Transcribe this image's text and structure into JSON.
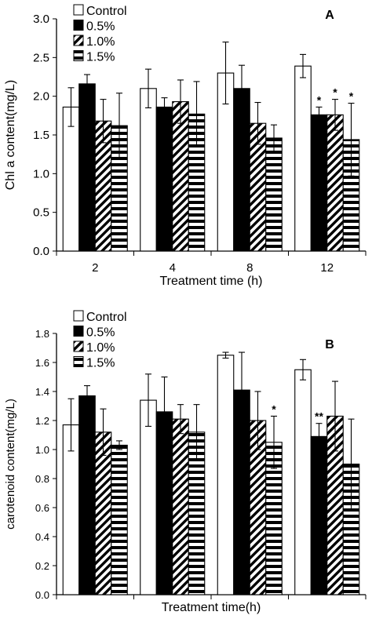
{
  "chart_data": [
    {
      "panel_label": "A",
      "type": "bar",
      "xlabel": "Treatment time (h)",
      "ylabel": "Chl a content(mg/L)",
      "categories": [
        "2",
        "4",
        "8",
        "12"
      ],
      "ylim": [
        0,
        3.0
      ],
      "yticks": [
        "0.0",
        "0.5",
        "1.0",
        "1.5",
        "2.0",
        "2.5",
        "3.0"
      ],
      "legend_position": "top-left",
      "series": [
        {
          "name": "Control",
          "pattern": "white",
          "values": [
            1.86,
            2.1,
            2.3,
            2.39
          ],
          "errors": [
            0.25,
            0.25,
            0.4,
            0.15
          ]
        },
        {
          "name": "0.5%",
          "pattern": "black",
          "values": [
            2.16,
            1.86,
            2.1,
            1.76
          ],
          "errors": [
            0.12,
            0.12,
            0.3,
            0.1
          ]
        },
        {
          "name": "1.0%",
          "pattern": "diagonal",
          "values": [
            1.68,
            1.93,
            1.65,
            1.76
          ],
          "errors": [
            0.28,
            0.28,
            0.27,
            0.2
          ]
        },
        {
          "name": "1.5%",
          "pattern": "horizontal",
          "values": [
            1.62,
            1.77,
            1.46,
            1.44
          ],
          "errors": [
            0.42,
            0.42,
            0.17,
            0.47
          ]
        }
      ],
      "annotations": [
        {
          "category": "12",
          "series": "0.5%",
          "text": "*"
        },
        {
          "category": "12",
          "series": "1.0%",
          "text": "*"
        },
        {
          "category": "12",
          "series": "1.5%",
          "text": "*"
        }
      ]
    },
    {
      "panel_label": "B",
      "type": "bar",
      "xlabel": "Treatment time(h)",
      "ylabel": "carotenoid content(mg/L)",
      "categories": [
        "2",
        "4",
        "8",
        "12"
      ],
      "ylim": [
        0,
        1.8
      ],
      "yticks": [
        "0.0",
        "0.2",
        "0.4",
        "0.6",
        "0.8",
        "1.0",
        "1.2",
        "1.4",
        "1.6",
        "1.8"
      ],
      "legend_position": "top-left",
      "series": [
        {
          "name": "Control",
          "pattern": "white",
          "values": [
            1.17,
            1.34,
            1.65,
            1.55
          ],
          "errors": [
            0.18,
            0.18,
            0.02,
            0.07
          ]
        },
        {
          "name": "0.5%",
          "pattern": "black",
          "values": [
            1.37,
            1.26,
            1.41,
            1.09
          ],
          "errors": [
            0.07,
            0.24,
            0.26,
            0.09
          ]
        },
        {
          "name": "1.0%",
          "pattern": "diagonal",
          "values": [
            1.12,
            1.21,
            1.2,
            1.23
          ],
          "errors": [
            0.16,
            0.1,
            0.2,
            0.24
          ]
        },
        {
          "name": "1.5%",
          "pattern": "horizontal",
          "values": [
            1.03,
            1.12,
            1.05,
            0.9
          ],
          "errors": [
            0.03,
            0.19,
            0.18,
            0.31
          ]
        }
      ],
      "annotations": [
        {
          "category": "8",
          "series": "1.5%",
          "text": "*"
        },
        {
          "category": "12",
          "series": "0.5%",
          "text": "**"
        }
      ]
    }
  ]
}
